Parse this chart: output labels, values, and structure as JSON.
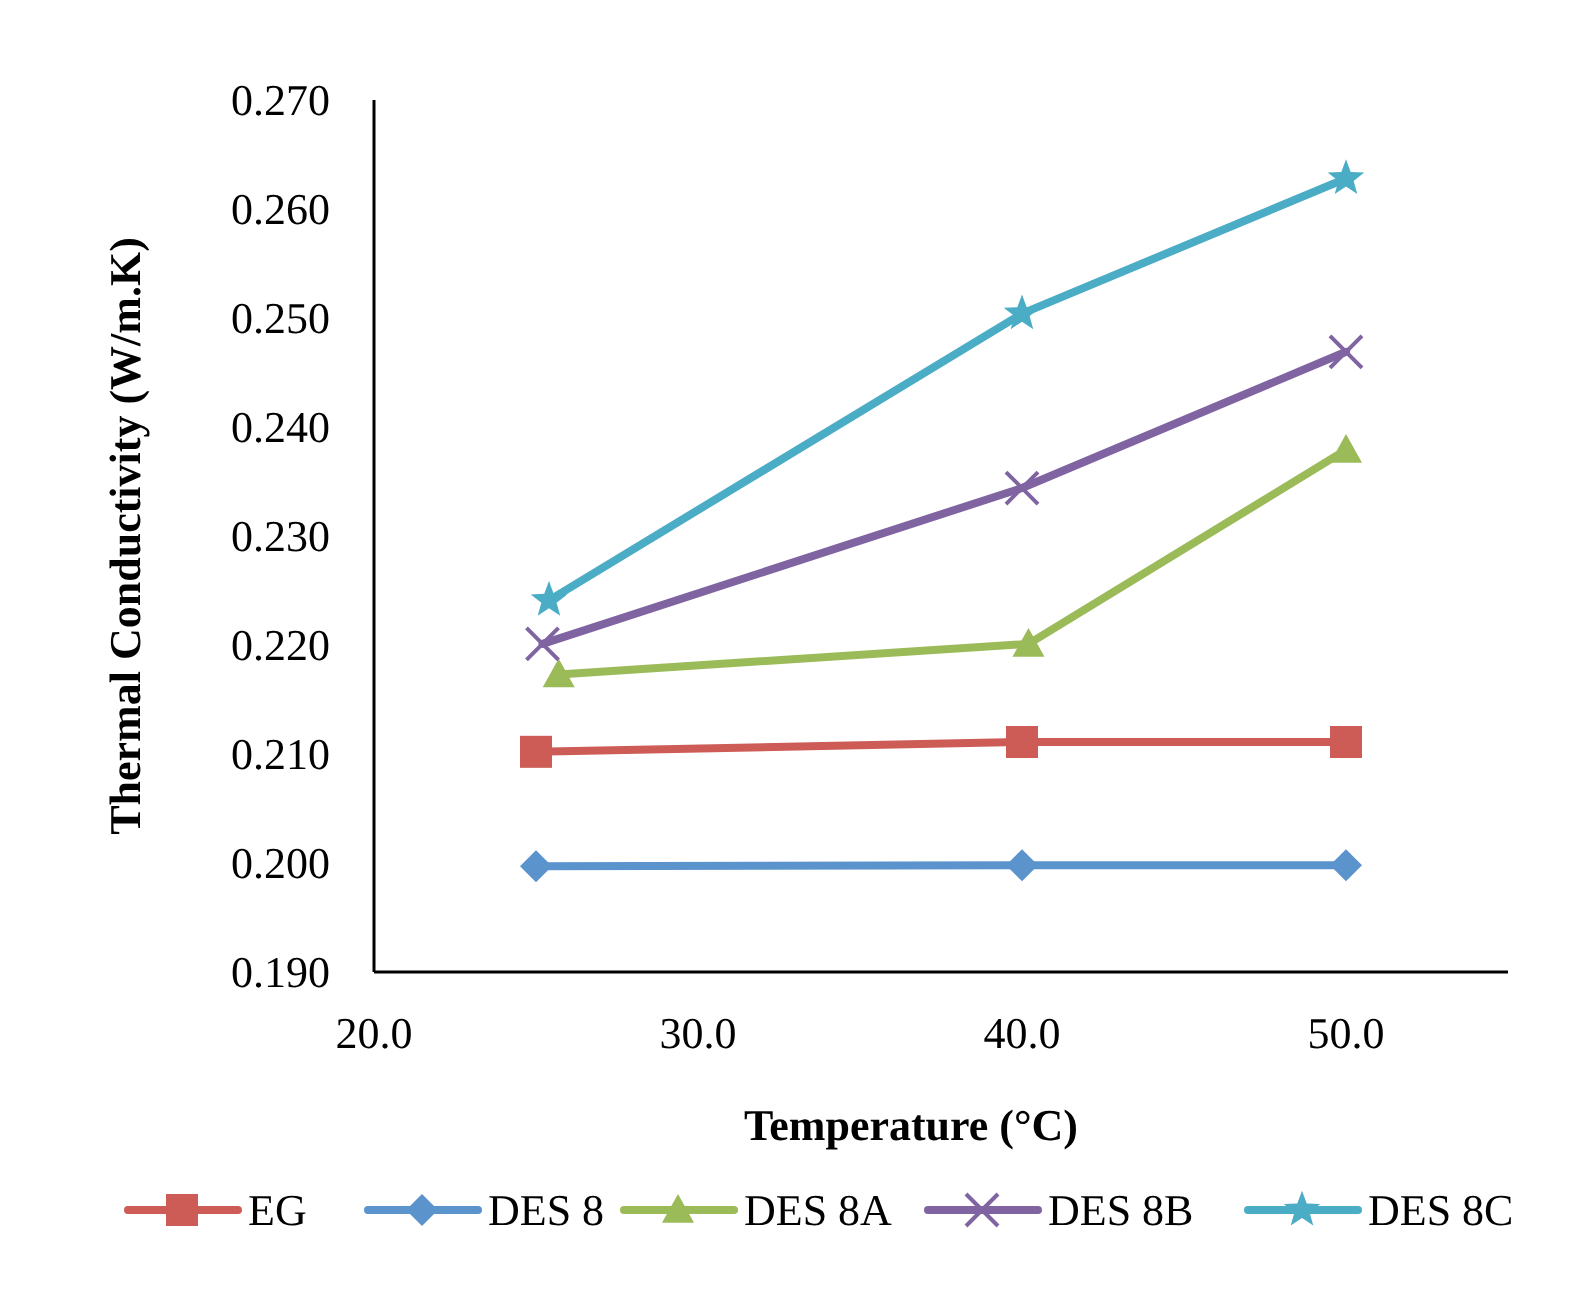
{
  "chart_data": {
    "type": "line",
    "xlabel": "Temperature (°C)",
    "ylabel": "Thermal Conductivity (W/m.K)",
    "xlim": [
      20,
      55
    ],
    "xticks": [
      {
        "value": 20,
        "label": "20.0"
      },
      {
        "value": 30,
        "label": "30.0"
      },
      {
        "value": 40,
        "label": "40.0"
      },
      {
        "value": 50,
        "label": "50.0"
      }
    ],
    "ylim": [
      0.19,
      0.27
    ],
    "yticks": [
      {
        "value": 0.19,
        "label": "0.190"
      },
      {
        "value": 0.2,
        "label": "0.200"
      },
      {
        "value": 0.21,
        "label": "0.210"
      },
      {
        "value": 0.22,
        "label": "0.220"
      },
      {
        "value": 0.23,
        "label": "0.230"
      },
      {
        "value": 0.24,
        "label": "0.240"
      },
      {
        "value": 0.25,
        "label": "0.250"
      },
      {
        "value": 0.26,
        "label": "0.260"
      },
      {
        "value": 0.27,
        "label": "0.270"
      }
    ],
    "grid": false,
    "legend": "bottom",
    "line_style": "solid",
    "series": [
      {
        "name": "EG",
        "color": "#cd5c57",
        "marker": "square",
        "x": [
          25,
          40,
          50
        ],
        "values": [
          0.2102,
          0.2111,
          0.2111
        ]
      },
      {
        "name": "DES 8",
        "color": "#5b93cd",
        "marker": "diamond",
        "x": [
          25,
          40,
          50
        ],
        "values": [
          0.1997,
          0.1998,
          0.1998
        ]
      },
      {
        "name": "DES 8A",
        "color": "#9bbb59",
        "marker": "triangle",
        "x": [
          25.7,
          40.2,
          50
        ],
        "values": [
          0.2173,
          0.2201,
          0.2379
        ]
      },
      {
        "name": "DES 8B",
        "color": "#8064a2",
        "marker": "cross",
        "x": [
          25.2,
          40,
          50
        ],
        "values": [
          0.2201,
          0.2344,
          0.2469
        ]
      },
      {
        "name": "DES 8C",
        "color": "#4bacc6",
        "marker": "star",
        "x": [
          25.4,
          40,
          50
        ],
        "values": [
          0.2241,
          0.2504,
          0.2628
        ]
      }
    ]
  }
}
